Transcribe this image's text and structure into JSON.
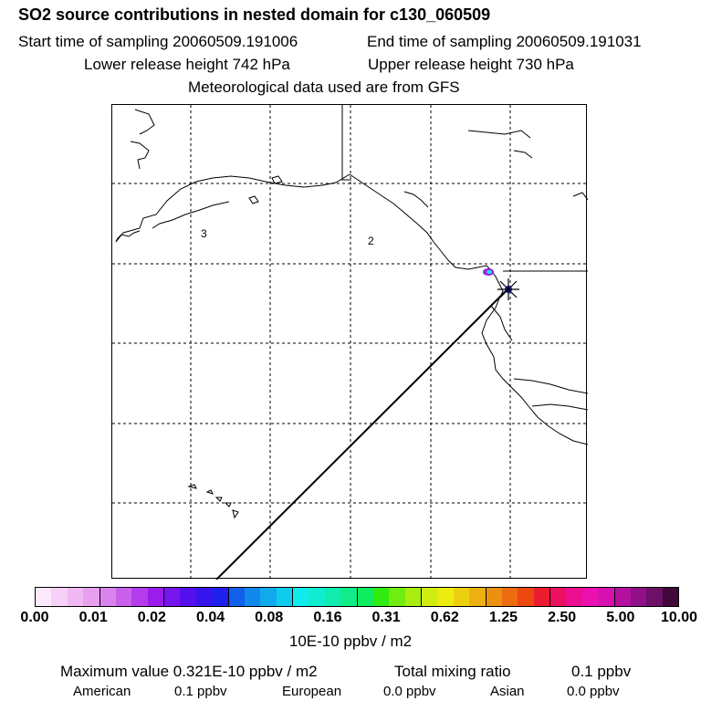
{
  "header": {
    "title": "SO2 source contributions in nested domain for c130_060509",
    "start_time": "Start time of sampling 20060509.191006",
    "end_time": "End time of sampling 20060509.191031",
    "lower_height": "Lower release height  742 hPa",
    "upper_height": "Upper release height  730 hPa",
    "met_data": "Meteorological data used are from GFS"
  },
  "map": {
    "region_labels": [
      "3",
      "2"
    ]
  },
  "colorbar": {
    "colors": [
      "#fce8fc",
      "#f6d0f6",
      "#f0b8f0",
      "#e8a0ee",
      "#d884ec",
      "#c860ec",
      "#b43cec",
      "#9c1cec",
      "#7814ec",
      "#5410ec",
      "#3814ec",
      "#2020ec",
      "#1060ec",
      "#1088ec",
      "#10aaec",
      "#10ccec",
      "#10ecec",
      "#10ecd0",
      "#10ecb0",
      "#10ec88",
      "#10ec60",
      "#30ec10",
      "#70ec10",
      "#a8ec10",
      "#d0ec10",
      "#ecec10",
      "#ecd010",
      "#ecb010",
      "#ec9010",
      "#ec6c10",
      "#ec4810",
      "#ec1c30",
      "#ec1060",
      "#ec1090",
      "#ec10b0",
      "#d810b0",
      "#b410a0",
      "#901088",
      "#6c1068",
      "#400838"
    ],
    "ticks": [
      "0.00",
      "0.01",
      "0.02",
      "0.04",
      "0.08",
      "0.16",
      "0.31",
      "0.62",
      "1.25",
      "2.50",
      "5.00",
      "10.00"
    ],
    "units": "10E-10 ppbv / m2"
  },
  "stats": {
    "max_value": "Maximum value  0.321E-10 ppbv / m2",
    "total_label": "Total mixing ratio",
    "total_value": "0.1 ppbv",
    "american_label": "American",
    "american_value": "0.1 ppbv",
    "european_label": "European",
    "european_value": "0.0 ppbv",
    "asian_label": "Asian",
    "asian_value": "0.0 ppbv"
  }
}
